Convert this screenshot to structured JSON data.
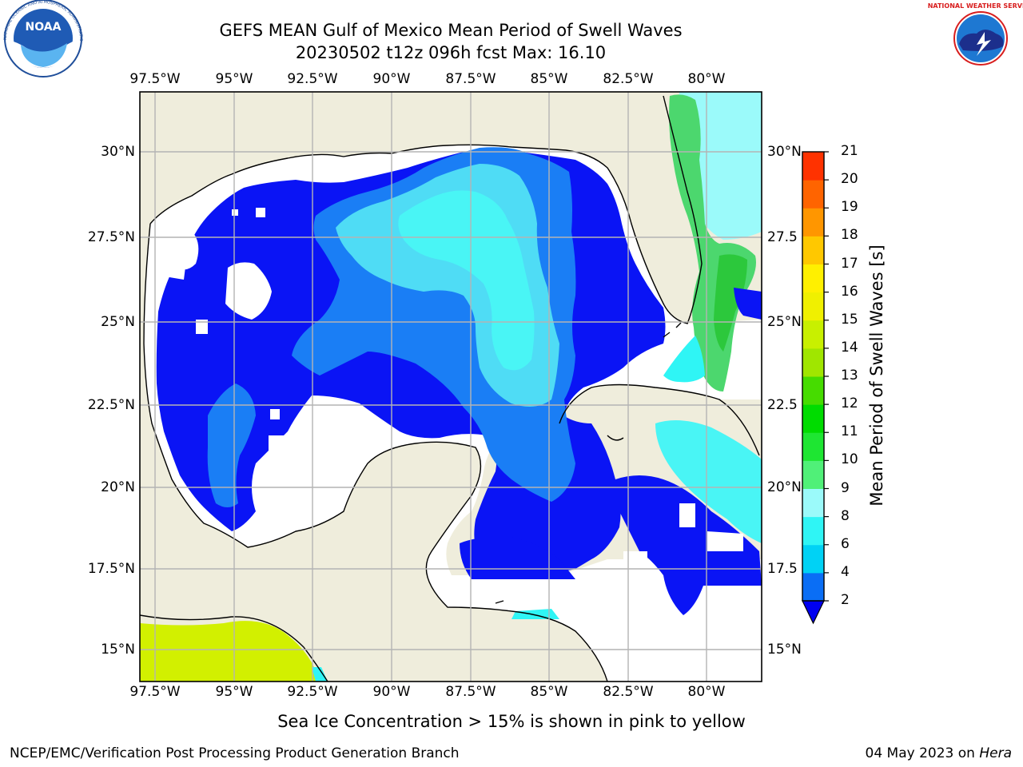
{
  "title": "GEFS MEAN Gulf of Mexico Mean Period of Swell Waves",
  "subtitle_line": "20230502 t12z 096h fcst   Max: 16.10",
  "lon_labels": [
    "97.5°W",
    "95°W",
    "92.5°W",
    "90°W",
    "87.5°W",
    "85°W",
    "82.5°W",
    "80°W"
  ],
  "lat_labels": [
    "30°N",
    "27.5°N",
    "25°N",
    "22.5°N",
    "20°N",
    "17.5°N",
    "15°N"
  ],
  "lat_labels_right": [
    "30°N",
    "27.5",
    "25°N",
    "22.5",
    "20°N",
    "17.5",
    "15°N"
  ],
  "colorbar": {
    "label": "Mean Period of Swell Waves [s]",
    "ticks": [
      "2",
      "4",
      "6",
      "8",
      "9",
      "10",
      "11",
      "12",
      "13",
      "14",
      "15",
      "16",
      "17",
      "18",
      "19",
      "20",
      "21"
    ],
    "colors": [
      "#0a6ef5",
      "#00d2f5",
      "#2ff5f5",
      "#9bfafa",
      "#50f078",
      "#1ee632",
      "#00dc00",
      "#46dc00",
      "#a0e600",
      "#c8f000",
      "#f0f000",
      "#fff000",
      "#ffc800",
      "#ff9600",
      "#ff6400",
      "#ff3200"
    ],
    "extend_color": "#0000f0"
  },
  "map_colors": {
    "land": "#efeddc",
    "no_data": "#ffffff",
    "deep_blue": "#0a14f5",
    "mid_blue": "#1a7ef5",
    "light_blue": "#4fb4fa",
    "cyan": "#3cf0f5",
    "pale_cyan": "#8ef5f5",
    "green": "#4cd76e",
    "bright_green": "#2cc83c",
    "yellow_green": "#d2f000"
  },
  "bottom_caption": "Sea Ice Concentration > 15% is shown in pink to yellow",
  "footer_left": "NCEP/EMC/Verification Post Processing Product Generation Branch",
  "footer_date": "04 May 2023 on ",
  "footer_machine": "Hera",
  "logo_left": {
    "name": "NOAA",
    "ring_text": "NATIONAL OCEANIC AND ATMOSPHERIC ADMINISTRATION · U.S. DEPARTMENT OF COMMERCE"
  },
  "logo_right": {
    "name": "NATIONAL WEATHER SERVICE"
  }
}
